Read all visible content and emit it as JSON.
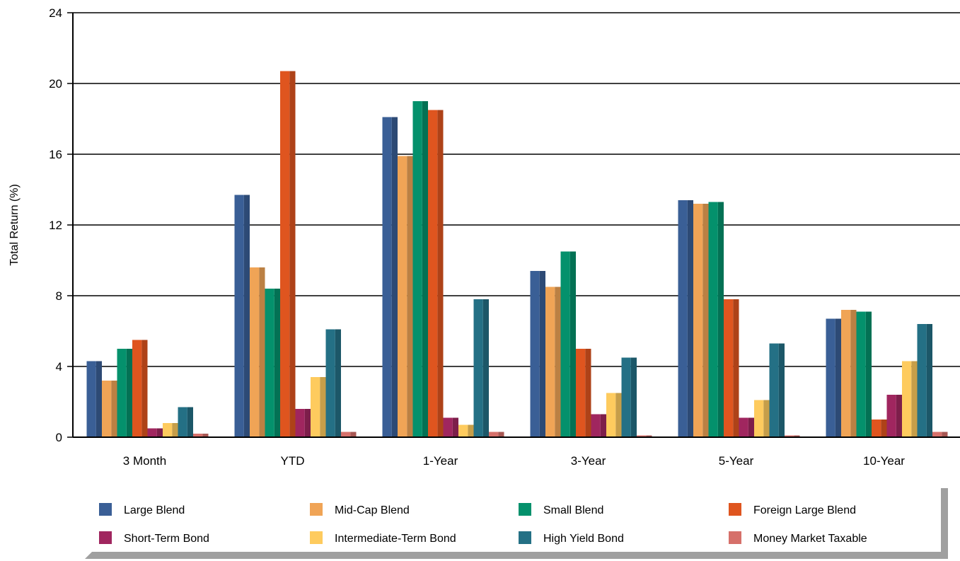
{
  "chart_data": {
    "type": "bar",
    "title": "",
    "xlabel": "",
    "ylabel": "Total Return (%)",
    "ylim": [
      0,
      24
    ],
    "yticks": [
      0,
      4,
      8,
      12,
      16,
      20,
      24
    ],
    "grid": true,
    "legend_position": "bottom",
    "categories": [
      "3 Month",
      "YTD",
      "1-Year",
      "3-Year",
      "5-Year",
      "10-Year"
    ],
    "series": [
      {
        "name": "Large Blend",
        "color": "#3a5f96",
        "values": [
          4.3,
          13.7,
          18.1,
          9.4,
          13.4,
          6.7
        ]
      },
      {
        "name": "Mid-Cap Blend",
        "color": "#f0a456",
        "values": [
          3.2,
          9.6,
          15.9,
          8.5,
          13.2,
          7.2
        ]
      },
      {
        "name": "Small Blend",
        "color": "#04916c",
        "values": [
          5.0,
          8.4,
          19.0,
          10.5,
          13.3,
          7.1
        ]
      },
      {
        "name": "Foreign Large Blend",
        "color": "#df551f",
        "values": [
          5.5,
          20.7,
          18.5,
          5.0,
          7.8,
          1.0
        ]
      },
      {
        "name": "Short-Term Bond",
        "color": "#a0265f",
        "values": [
          0.5,
          1.6,
          1.1,
          1.3,
          1.1,
          2.4
        ]
      },
      {
        "name": "Intermediate-Term Bond",
        "color": "#fecb5e",
        "values": [
          0.8,
          3.4,
          0.7,
          2.5,
          2.1,
          4.3
        ]
      },
      {
        "name": "High Yield Bond",
        "color": "#247085",
        "values": [
          1.7,
          6.1,
          7.8,
          4.5,
          5.3,
          6.4
        ]
      },
      {
        "name": "Money Market Taxable",
        "color": "#d6706a",
        "values": [
          0.2,
          0.3,
          0.3,
          0.1,
          0.1,
          0.3
        ]
      }
    ]
  }
}
